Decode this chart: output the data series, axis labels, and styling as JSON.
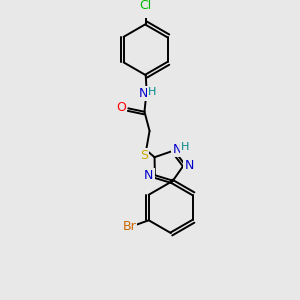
{
  "background_color": "#e8e8e8",
  "atom_colors": {
    "C": "#000000",
    "N": "#0000cc",
    "O": "#ff0000",
    "S": "#ccaa00",
    "Cl": "#00bb00",
    "Br": "#cc6600",
    "H": "#008888"
  },
  "font_size": 8.5,
  "bond_width": 1.4,
  "dbo": 0.055,
  "figsize": [
    3.0,
    3.0
  ],
  "dpi": 100
}
